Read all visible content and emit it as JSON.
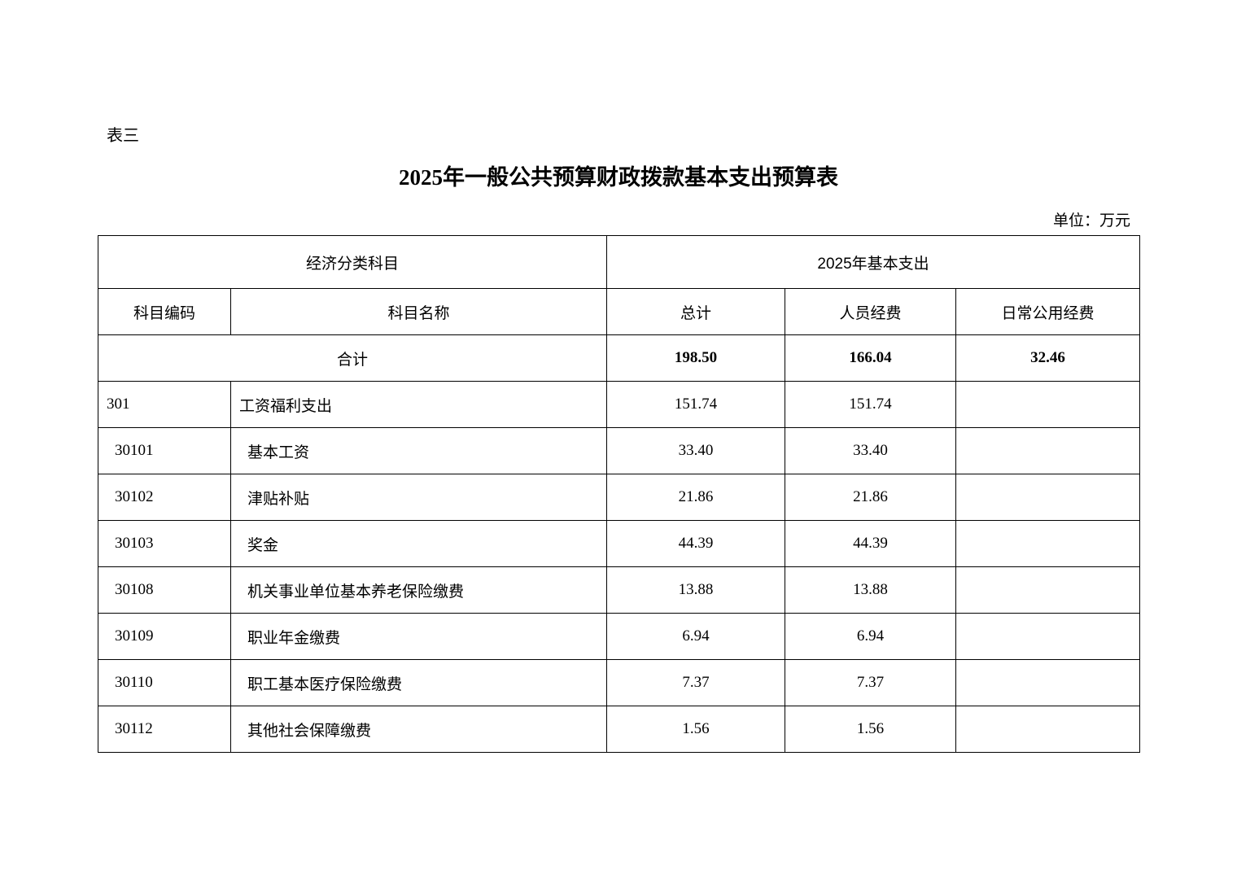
{
  "doc_label": "表三",
  "title": "2025年一般公共预算财政拨款基本支出预算表",
  "unit": "单位：万元",
  "table": {
    "group_headers": [
      "经济分类科目",
      "2025年基本支出"
    ],
    "headers": [
      "科目编码",
      "科目名称",
      "总计",
      "人员经费",
      "日常公用经费"
    ],
    "total": {
      "label": "合计",
      "total": "198.50",
      "personnel": "166.04",
      "public": "32.46"
    },
    "rows": [
      {
        "code": "301",
        "name": "工资福利支出",
        "total": "151.74",
        "personnel": "151.74",
        "public": "",
        "level": 1
      },
      {
        "code": "30101",
        "name": "基本工资",
        "total": "33.40",
        "personnel": "33.40",
        "public": "",
        "level": 2
      },
      {
        "code": "30102",
        "name": "津贴补贴",
        "total": "21.86",
        "personnel": "21.86",
        "public": "",
        "level": 2
      },
      {
        "code": "30103",
        "name": "奖金",
        "total": "44.39",
        "personnel": "44.39",
        "public": "",
        "level": 2
      },
      {
        "code": "30108",
        "name": "机关事业单位基本养老保险缴费",
        "total": "13.88",
        "personnel": "13.88",
        "public": "",
        "level": 2
      },
      {
        "code": "30109",
        "name": "职业年金缴费",
        "total": "6.94",
        "personnel": "6.94",
        "public": "",
        "level": 2
      },
      {
        "code": "30110",
        "name": "职工基本医疗保险缴费",
        "total": "7.37",
        "personnel": "7.37",
        "public": "",
        "level": 2
      },
      {
        "code": "30112",
        "name": "其他社会保障缴费",
        "total": "1.56",
        "personnel": "1.56",
        "public": "",
        "level": 2
      }
    ]
  }
}
